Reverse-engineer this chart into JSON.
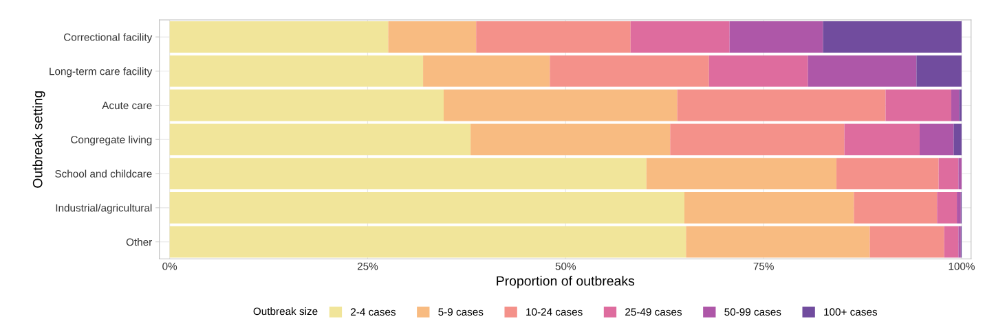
{
  "chart_data": {
    "type": "bar",
    "orientation": "horizontal",
    "stacked": true,
    "xlabel": "Proportion of outbreaks",
    "ylabel": "Outbreak setting",
    "legend_title": "Outbreak size",
    "legend": "bottom",
    "grid": true,
    "categories": [
      "Correctional facility",
      "Long-term care facility",
      "Acute care",
      "Congregate living",
      "School and childcare",
      "Industrial/agricultural",
      "Other"
    ],
    "xlim": [
      -1.3,
      101.2
    ],
    "xticks": [
      {
        "value": 0,
        "label": "0%"
      },
      {
        "value": 25,
        "label": "25%"
      },
      {
        "value": 50,
        "label": "50%"
      },
      {
        "value": 75,
        "label": "75%"
      },
      {
        "value": 100,
        "label": "100%"
      }
    ],
    "series": [
      {
        "name": "2-4 cases",
        "color": "#f1e59a",
        "values": [
          27.6,
          32.0,
          34.6,
          38.0,
          60.2,
          65.0,
          65.2
        ]
      },
      {
        "name": "5-9 cases",
        "color": "#f8bb81",
        "values": [
          11.1,
          16.0,
          29.5,
          25.2,
          24.0,
          21.4,
          23.2
        ]
      },
      {
        "name": "10-24 cases",
        "color": "#f4918a",
        "values": [
          19.5,
          20.1,
          26.3,
          22.0,
          12.9,
          10.5,
          9.4
        ]
      },
      {
        "name": "25-49 cases",
        "color": "#de6c9e",
        "values": [
          12.5,
          12.5,
          8.3,
          9.5,
          2.5,
          2.5,
          1.8
        ]
      },
      {
        "name": "50-99 cases",
        "color": "#ae57a8",
        "values": [
          11.8,
          13.7,
          1.0,
          4.3,
          0.4,
          0.5,
          0.3
        ]
      },
      {
        "name": "100+ cases",
        "color": "#714c9e",
        "values": [
          17.5,
          5.7,
          0.3,
          1.0,
          0,
          0.1,
          0.1
        ]
      }
    ]
  }
}
